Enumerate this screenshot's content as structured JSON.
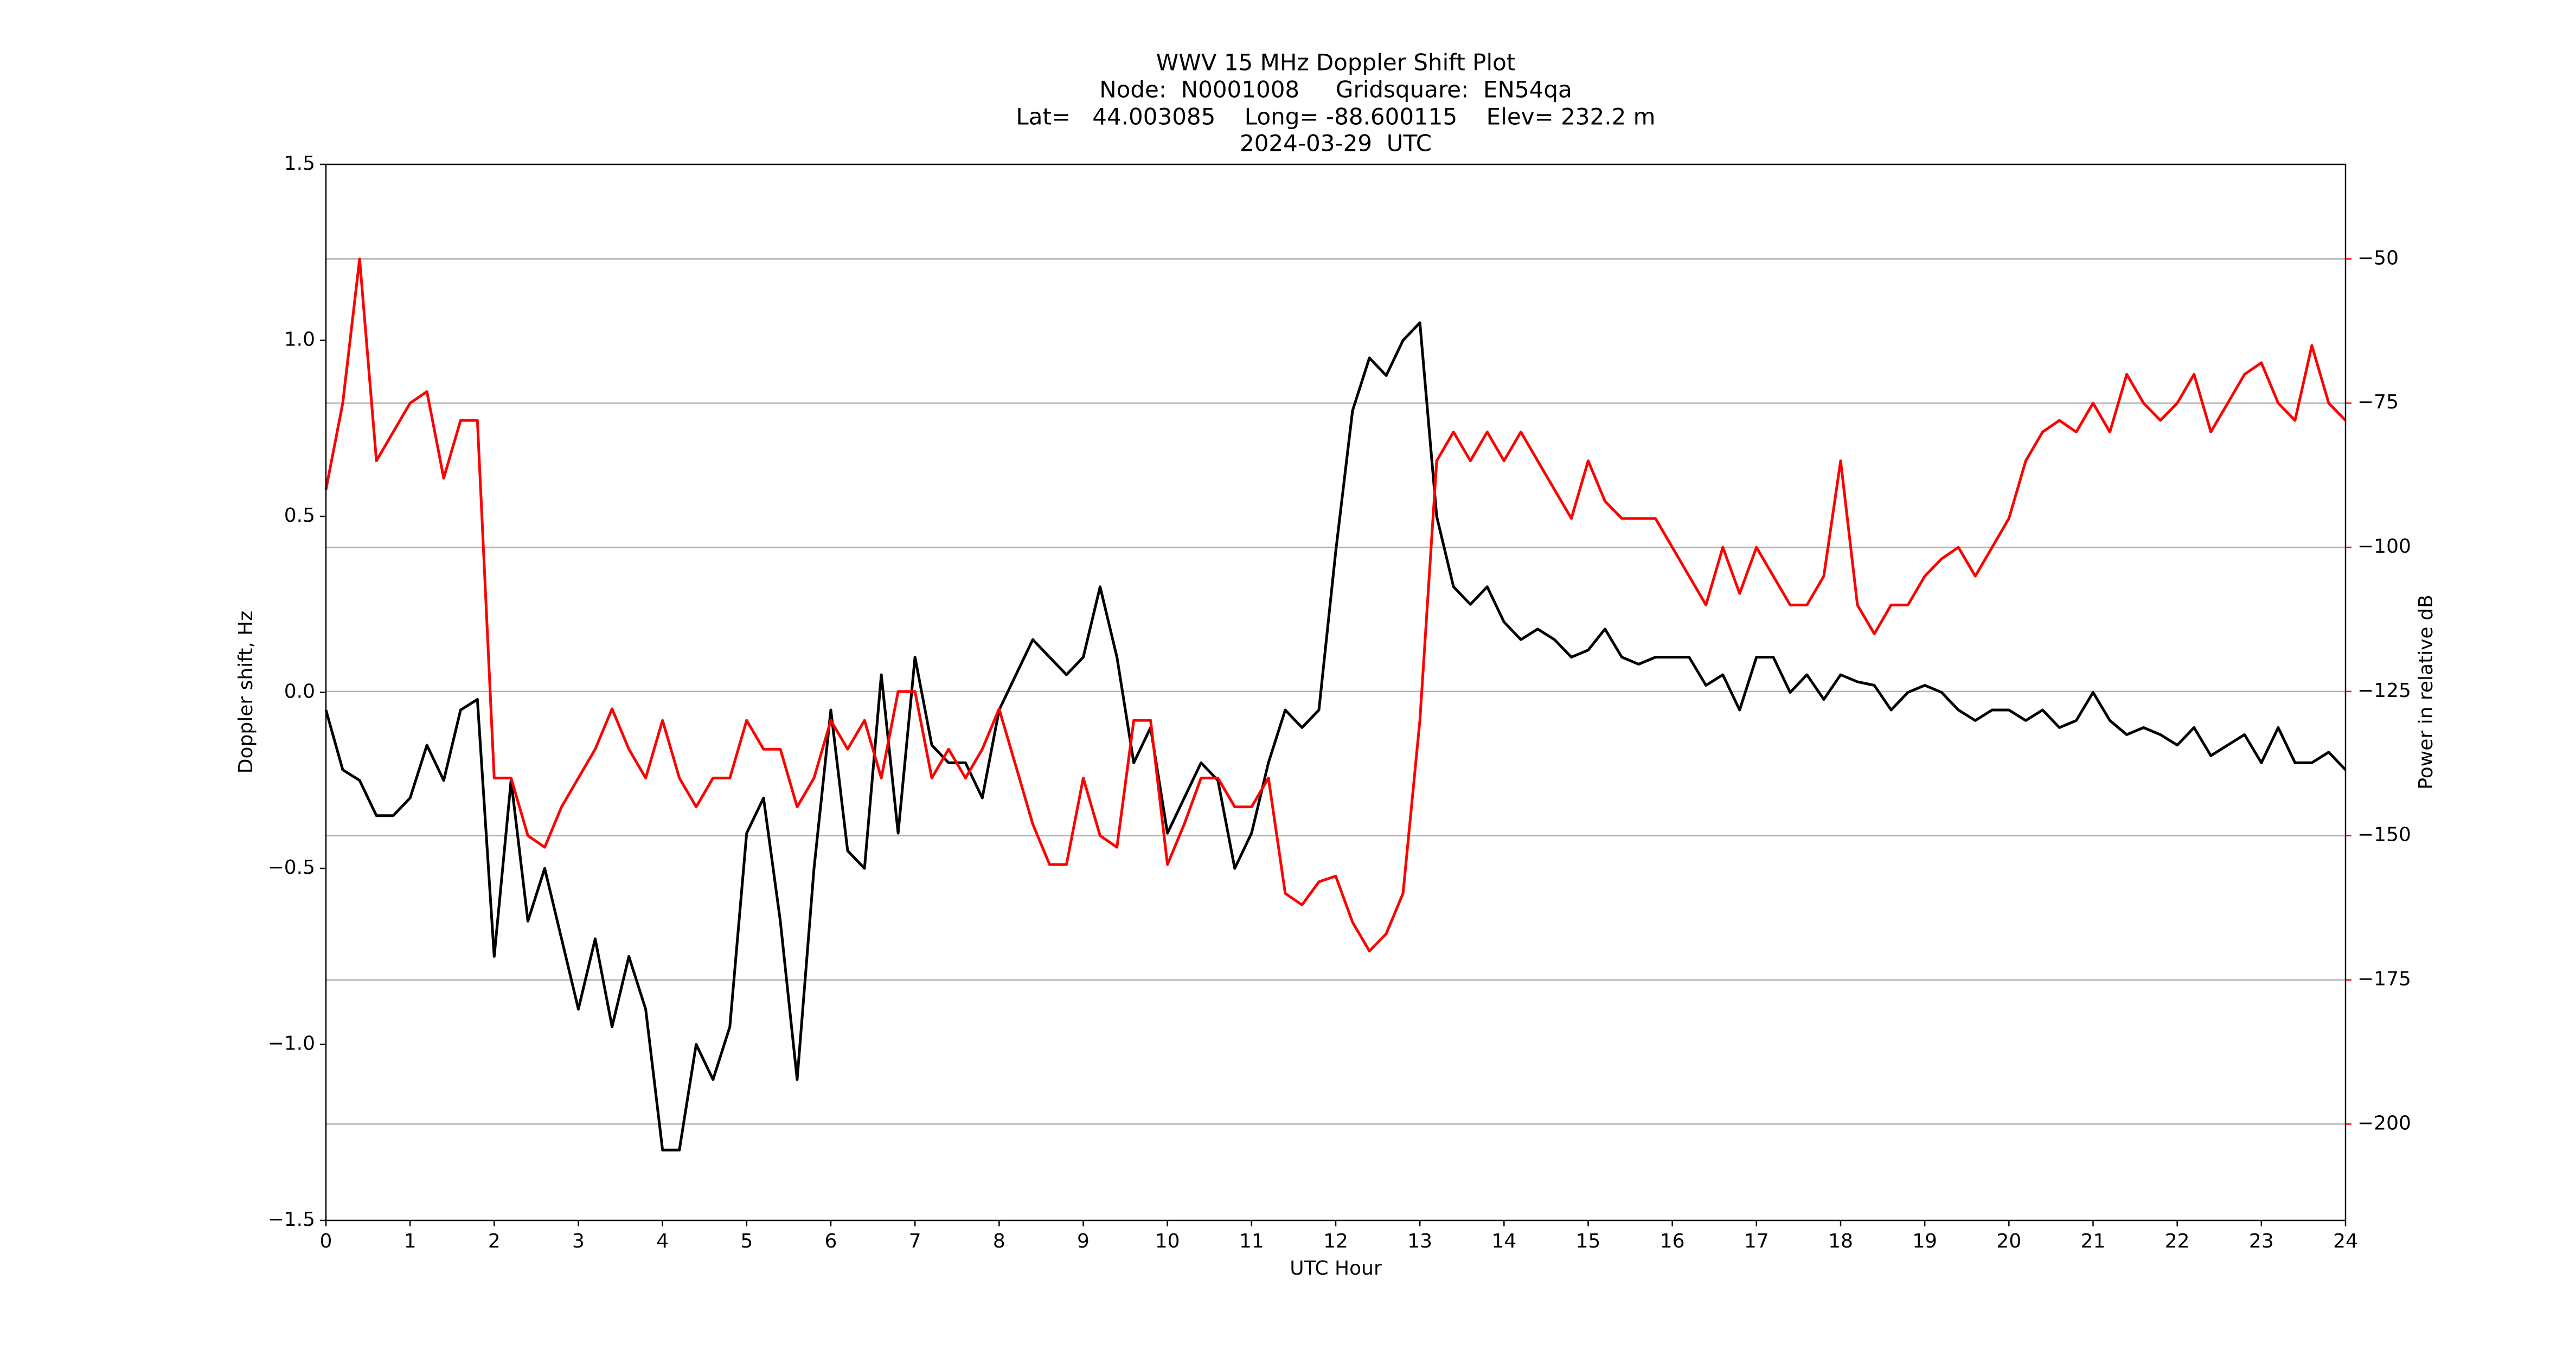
{
  "chart_data": {
    "type": "line",
    "title": [
      "WWV 15 MHz Doppler Shift Plot",
      "Node:  N0001008     Gridsquare:  EN54qa",
      "Lat=   44.003085    Long= -88.600115    Elev= 232.2 m",
      "2024-03-29  UTC"
    ],
    "x_label": "UTC Hour",
    "y_label": "Doppler shift, Hz",
    "y2_label": "Power in relative dB",
    "x": [
      0,
      0.2,
      0.4,
      0.6,
      0.8,
      1,
      1.2,
      1.4,
      1.6,
      1.8,
      2,
      2.2,
      2.4,
      2.6,
      2.8,
      3,
      3.2,
      3.4,
      3.6,
      3.8,
      4,
      4.2,
      4.4,
      4.6,
      4.8,
      5,
      5.2,
      5.4,
      5.6,
      5.8,
      6,
      6.2,
      6.4,
      6.6,
      6.8,
      7,
      7.2,
      7.4,
      7.6,
      7.8,
      8,
      8.2,
      8.4,
      8.6,
      8.8,
      9,
      9.2,
      9.4,
      9.6,
      9.8,
      10,
      10.2,
      10.4,
      10.6,
      10.8,
      11,
      11.2,
      11.4,
      11.6,
      11.8,
      12,
      12.2,
      12.4,
      12.6,
      12.8,
      13,
      13.2,
      13.4,
      13.6,
      13.8,
      14,
      14.2,
      14.4,
      14.6,
      14.8,
      15,
      15.2,
      15.4,
      15.6,
      15.8,
      16,
      16.2,
      16.4,
      16.6,
      16.8,
      17,
      17.2,
      17.4,
      17.6,
      17.8,
      18,
      18.2,
      18.4,
      18.6,
      18.8,
      19,
      19.2,
      19.4,
      19.6,
      19.8,
      20,
      20.2,
      20.4,
      20.6,
      20.8,
      21,
      21.2,
      21.4,
      21.6,
      21.8,
      22,
      22.2,
      22.4,
      22.6,
      22.8,
      23,
      23.2,
      23.4,
      23.6,
      23.8,
      24
    ],
    "series": [
      {
        "color": "#000000",
        "axis": "y",
        "values": [
          -0.05,
          -0.22,
          -0.25,
          -0.35,
          -0.35,
          -0.3,
          -0.15,
          -0.25,
          -0.05,
          -0.02,
          -0.75,
          -0.25,
          -0.65,
          -0.5,
          -0.7,
          -0.9,
          -0.7,
          -0.95,
          -0.75,
          -0.9,
          -1.3,
          -1.3,
          -1.0,
          -1.1,
          -0.95,
          -0.4,
          -0.3,
          -0.65,
          -1.1,
          -0.5,
          -0.05,
          -0.45,
          -0.5,
          0.05,
          -0.4,
          0.1,
          -0.15,
          -0.2,
          -0.2,
          -0.3,
          -0.05,
          0.05,
          0.15,
          0.1,
          0.05,
          0.1,
          0.3,
          0.1,
          -0.2,
          -0.1,
          -0.4,
          -0.3,
          -0.2,
          -0.25,
          -0.5,
          -0.4,
          -0.2,
          -0.05,
          -0.1,
          -0.05,
          0.4,
          0.8,
          0.95,
          0.9,
          1.0,
          1.05,
          0.5,
          0.3,
          0.25,
          0.3,
          0.2,
          0.15,
          0.18,
          0.15,
          0.1,
          0.12,
          0.18,
          0.1,
          0.08,
          0.1,
          0.1,
          0.1,
          0.02,
          0.05,
          -0.05,
          0.1,
          0.1,
          0.0,
          0.05,
          -0.02,
          0.05,
          0.03,
          0.02,
          -0.05,
          0.0,
          0.02,
          0.0,
          -0.05,
          -0.08,
          -0.05,
          -0.05,
          -0.08,
          -0.05,
          -0.1,
          -0.08,
          0.0,
          -0.08,
          -0.12,
          -0.1,
          -0.12,
          -0.15,
          -0.1,
          -0.18,
          -0.15,
          -0.12,
          -0.2,
          -0.1,
          -0.2,
          -0.2,
          -0.17,
          -0.22
        ]
      },
      {
        "color": "#ff0000",
        "axis": "y2",
        "values": [
          -90,
          -75,
          -50,
          -85,
          -80,
          -75,
          -73,
          -88,
          -78,
          -78,
          -140,
          -140,
          -150,
          -152,
          -145,
          -140,
          -135,
          -128,
          -135,
          -140,
          -130,
          -140,
          -145,
          -140,
          -140,
          -130,
          -135,
          -135,
          -145,
          -140,
          -130,
          -135,
          -130,
          -140,
          -125,
          -125,
          -140,
          -135,
          -140,
          -135,
          -128,
          -138,
          -148,
          -155,
          -155,
          -140,
          -150,
          -152,
          -130,
          -130,
          -155,
          -148,
          -140,
          -140,
          -145,
          -145,
          -140,
          -160,
          -162,
          -158,
          -157,
          -165,
          -170,
          -167,
          -160,
          -130,
          -85,
          -80,
          -85,
          -80,
          -85,
          -80,
          -85,
          -90,
          -95,
          -85,
          -92,
          -95,
          -95,
          -95,
          -100,
          -105,
          -110,
          -100,
          -108,
          -100,
          -105,
          -110,
          -110,
          -105,
          -85,
          -110,
          -115,
          -110,
          -110,
          -105,
          -102,
          -100,
          -105,
          -100,
          -95,
          -85,
          -80,
          -78,
          -80,
          -75,
          -80,
          -70,
          -75,
          -78,
          -75,
          -70,
          -80,
          -75,
          -70,
          -68,
          -75,
          -78,
          -65,
          -75,
          -78
        ]
      }
    ],
    "xlim": [
      0,
      24
    ],
    "xticks": [
      0,
      1,
      2,
      3,
      4,
      5,
      6,
      7,
      8,
      9,
      10,
      11,
      12,
      13,
      14,
      15,
      16,
      17,
      18,
      19,
      20,
      21,
      22,
      23,
      24
    ],
    "ylim": [
      -1.5,
      1.5
    ],
    "yticks": [
      {
        "value": -1.5,
        "label": "−1.5"
      },
      {
        "value": -1.0,
        "label": "−1.0"
      },
      {
        "value": -0.5,
        "label": "−0.5"
      },
      {
        "value": 0,
        "label": "0.0"
      },
      0.5,
      {
        "value": 1.0,
        "label": "1.0"
      },
      1.5
    ],
    "y2lim": [
      -216.7,
      -33.6
    ],
    "y2ticks": [
      {
        "value": -200,
        "label": "−200"
      },
      {
        "value": -175,
        "label": "−175"
      },
      {
        "value": -150,
        "label": "−150"
      },
      {
        "value": -125,
        "label": "−125"
      },
      {
        "value": -100,
        "label": "−100"
      },
      {
        "value": -75,
        "label": "−75"
      },
      {
        "value": -50,
        "label": "−50"
      }
    ],
    "y2_color": "#ff0000",
    "grid": "y2"
  }
}
